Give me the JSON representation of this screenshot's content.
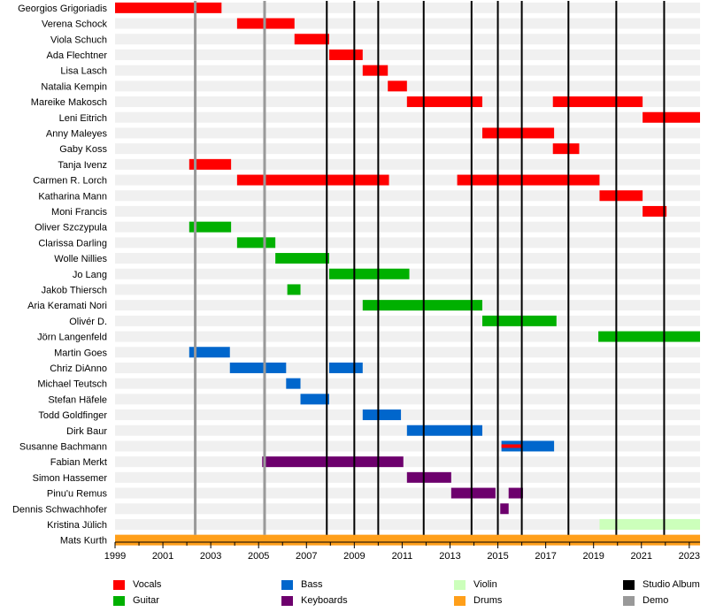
{
  "chart_data": {
    "type": "timeline",
    "title": "",
    "x_range": [
      1999,
      2023.45
    ],
    "x_ticks": [
      "1999",
      "2001",
      "2003",
      "2005",
      "2007",
      "2009",
      "2011",
      "2013",
      "2015",
      "2017",
      "2019",
      "2021",
      "2023"
    ],
    "members": [
      "Georgios Grigoriadis",
      "Verena Schock",
      "Viola Schuch",
      "Ada Flechtner",
      "Lisa Lasch",
      "Natalia Kempin",
      "Mareike Makosch",
      "Leni Eitrich",
      "Anny Maleyes",
      "Gaby Koss",
      "Tanja Ivenz",
      "Carmen R. Lorch",
      "Katharina Mann",
      "Moni Francis",
      "Oliver Szczypula",
      "Clarissa Darling",
      "Wolle Nillies",
      "Jo Lang",
      "Jakob Thiersch",
      "Aria Keramati Nori",
      "Olivér D.",
      "Jörn Langenfeld",
      "Martin Goes",
      "Chriz DiAnno",
      "Michael Teutsch",
      "Stefan Häfele",
      "Todd Goldfinger",
      "Dirk Baur",
      "Susanne Bachmann",
      "Fabian Merkt",
      "Simon Hassemer",
      "Pinu'u Remus",
      "Dennis Schwachhofer",
      "Kristina Jülich",
      "Mats Kurth"
    ],
    "role_colors": {
      "Vocals": "#ff0000",
      "Guitar": "#00b000",
      "Bass": "#0066cc",
      "Violin": "#ccffbb",
      "Keyboards": "#6d006d",
      "Drums": "#ff9f1a",
      "Studio Album": "#000000",
      "Demo": "#999999"
    },
    "bars": [
      {
        "member": "Georgios Grigoriadis",
        "role": "Vocals",
        "start": 1999,
        "end": 2003.45
      },
      {
        "member": "Verena Schock",
        "role": "Vocals",
        "start": 2004.1,
        "end": 2006.5
      },
      {
        "member": "Viola Schuch",
        "role": "Vocals",
        "start": 2006.5,
        "end": 2007.95
      },
      {
        "member": "Ada Flechtner",
        "role": "Vocals",
        "start": 2007.95,
        "end": 2009.35
      },
      {
        "member": "Lisa Lasch",
        "role": "Vocals",
        "start": 2009.35,
        "end": 2010.4
      },
      {
        "member": "Natalia Kempin",
        "role": "Vocals",
        "start": 2010.4,
        "end": 2011.2
      },
      {
        "member": "Mareike Makosch",
        "role": "Vocals",
        "start": 2011.2,
        "end": 2014.35
      },
      {
        "member": "Mareike Makosch",
        "role": "Vocals",
        "start": 2017.3,
        "end": 2021.05
      },
      {
        "member": "Leni Eitrich",
        "role": "Vocals",
        "start": 2021.05,
        "end": 2023.45
      },
      {
        "member": "Anny Maleyes",
        "role": "Vocals",
        "start": 2014.35,
        "end": 2017.35
      },
      {
        "member": "Gaby Koss",
        "role": "Vocals",
        "start": 2017.3,
        "end": 2018.4
      },
      {
        "member": "Tanja Ivenz",
        "role": "Vocals",
        "start": 2002.1,
        "end": 2003.85
      },
      {
        "member": "Carmen R. Lorch",
        "role": "Vocals",
        "start": 2004.1,
        "end": 2010.45
      },
      {
        "member": "Carmen R. Lorch",
        "role": "Vocals",
        "start": 2013.3,
        "end": 2019.25
      },
      {
        "member": "Katharina Mann",
        "role": "Vocals",
        "start": 2019.25,
        "end": 2021.05
      },
      {
        "member": "Moni Francis",
        "role": "Vocals",
        "start": 2021.05,
        "end": 2022.05
      },
      {
        "member": "Oliver Szczypula",
        "role": "Guitar",
        "start": 2002.1,
        "end": 2003.85
      },
      {
        "member": "Clarissa Darling",
        "role": "Guitar",
        "start": 2004.1,
        "end": 2005.7
      },
      {
        "member": "Wolle Nillies",
        "role": "Guitar",
        "start": 2005.7,
        "end": 2007.95
      },
      {
        "member": "Jo Lang",
        "role": "Guitar",
        "start": 2007.95,
        "end": 2011.3
      },
      {
        "member": "Jakob Thiersch",
        "role": "Guitar",
        "start": 2006.2,
        "end": 2006.75
      },
      {
        "member": "Aria Keramati Nori",
        "role": "Guitar",
        "start": 2009.35,
        "end": 2014.35
      },
      {
        "member": "Olivér D.",
        "role": "Guitar",
        "start": 2014.35,
        "end": 2017.45
      },
      {
        "member": "Jörn Langenfeld",
        "role": "Guitar",
        "start": 2019.2,
        "end": 2023.45
      },
      {
        "member": "Martin Goes",
        "role": "Bass",
        "start": 2002.1,
        "end": 2003.8
      },
      {
        "member": "Chriz DiAnno",
        "role": "Bass",
        "start": 2003.8,
        "end": 2006.15
      },
      {
        "member": "Chriz DiAnno",
        "role": "Bass",
        "start": 2007.95,
        "end": 2009.35
      },
      {
        "member": "Michael Teutsch",
        "role": "Bass",
        "start": 2006.15,
        "end": 2006.75
      },
      {
        "member": "Stefan Häfele",
        "role": "Bass",
        "start": 2006.75,
        "end": 2007.95
      },
      {
        "member": "Todd Goldfinger",
        "role": "Bass",
        "start": 2009.35,
        "end": 2010.95
      },
      {
        "member": "Dirk Baur",
        "role": "Bass",
        "start": 2011.2,
        "end": 2014.35
      },
      {
        "member": "Susanne Bachmann",
        "role": "Bass",
        "start": 2015.15,
        "end": 2017.35
      },
      {
        "member": "Susanne Bachmann",
        "role": "Vocals",
        "start": 2015.15,
        "end": 2016.0,
        "thin": true
      },
      {
        "member": "Fabian Merkt",
        "role": "Keyboards",
        "start": 2005.15,
        "end": 2011.05
      },
      {
        "member": "Simon Hassemer",
        "role": "Keyboards",
        "start": 2011.2,
        "end": 2013.05
      },
      {
        "member": "Pinu'u Remus",
        "role": "Keyboards",
        "start": 2013.05,
        "end": 2014.9
      },
      {
        "member": "Pinu'u Remus",
        "role": "Keyboards",
        "start": 2015.45,
        "end": 2016.05
      },
      {
        "member": "Dennis Schwachhofer",
        "role": "Keyboards",
        "start": 2015.1,
        "end": 2015.45
      },
      {
        "member": "Kristina Jülich",
        "role": "Violin",
        "start": 2019.25,
        "end": 2023.45
      },
      {
        "member": "Mats Kurth",
        "role": "Drums",
        "start": 1999,
        "end": 2023.45
      }
    ],
    "demo_lines": [
      2002.35,
      2005.25
    ],
    "album_lines": [
      2007.85,
      2009.0,
      2010.0,
      2011.9,
      2013.9,
      2015.0,
      2016.0,
      2017.95,
      2019.95,
      2021.95
    ],
    "legend": [
      {
        "label": "Vocals",
        "color": "#ff0000"
      },
      {
        "label": "Guitar",
        "color": "#00b000"
      },
      {
        "label": "Bass",
        "color": "#0066cc"
      },
      {
        "label": "Keyboards",
        "color": "#6d006d"
      },
      {
        "label": "Violin",
        "color": "#ccffbb"
      },
      {
        "label": "Drums",
        "color": "#ff9f1a"
      },
      {
        "label": "Studio Album",
        "color": "#000000"
      },
      {
        "label": "Demo",
        "color": "#999999"
      }
    ]
  }
}
